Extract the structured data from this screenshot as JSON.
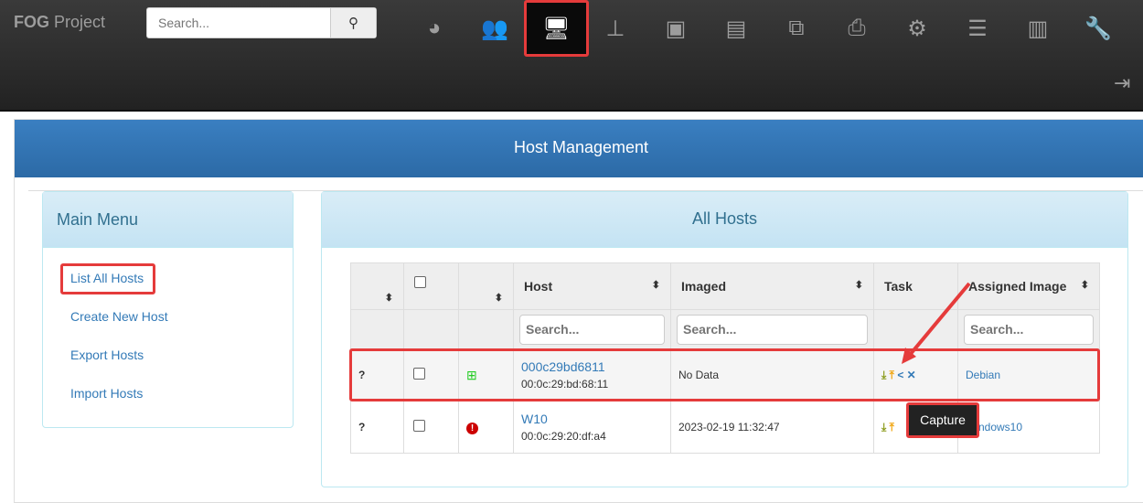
{
  "brand": {
    "bold": "FOG",
    "rest": " Project"
  },
  "search": {
    "placeholder": "Search...",
    "icon": "search-icon"
  },
  "nav": [
    {
      "name": "dashboard",
      "icon": "◕"
    },
    {
      "name": "users",
      "icon": "👥"
    },
    {
      "name": "hosts",
      "icon": "🖥",
      "active": true
    },
    {
      "name": "groups",
      "icon": "⊥"
    },
    {
      "name": "images",
      "icon": "▣"
    },
    {
      "name": "storage",
      "icon": "▤"
    },
    {
      "name": "snapins",
      "icon": "⧉"
    },
    {
      "name": "printers",
      "icon": "⎙"
    },
    {
      "name": "services",
      "icon": "⚙"
    },
    {
      "name": "tasks",
      "icon": "☰"
    },
    {
      "name": "reports",
      "icon": "▥"
    },
    {
      "name": "settings",
      "icon": "🔧"
    }
  ],
  "logout_icon": "⇥",
  "page_title": "Host Management",
  "main_menu": {
    "title": "Main Menu",
    "items": [
      "List All Hosts",
      "Create New Host",
      "Export Hosts",
      "Import Hosts"
    ]
  },
  "hosts_panel": {
    "title": "All Hosts",
    "columns": [
      "",
      "",
      "",
      "Host",
      "Imaged",
      "Task",
      "Assigned Image"
    ],
    "search_placeholder": "Search...",
    "rows": [
      {
        "status": "?",
        "os": "windows",
        "host": "000c29bd6811",
        "mac": "00:0c:29:bd:68:11",
        "imaged": "No Data",
        "image": "Debian"
      },
      {
        "status": "?",
        "os": "error",
        "host": "W10",
        "mac": "00:0c:29:20:df:a4",
        "imaged": "2023-02-19 11:32:47",
        "image": "Windows10"
      }
    ]
  },
  "tooltip": "Capture",
  "colors": {
    "annotation": "#e53b3b",
    "link": "#337ab7",
    "deploy": "#8a9a1a",
    "capture": "#f0a30a",
    "windows": "#22cc22",
    "error": "#cc0000"
  }
}
